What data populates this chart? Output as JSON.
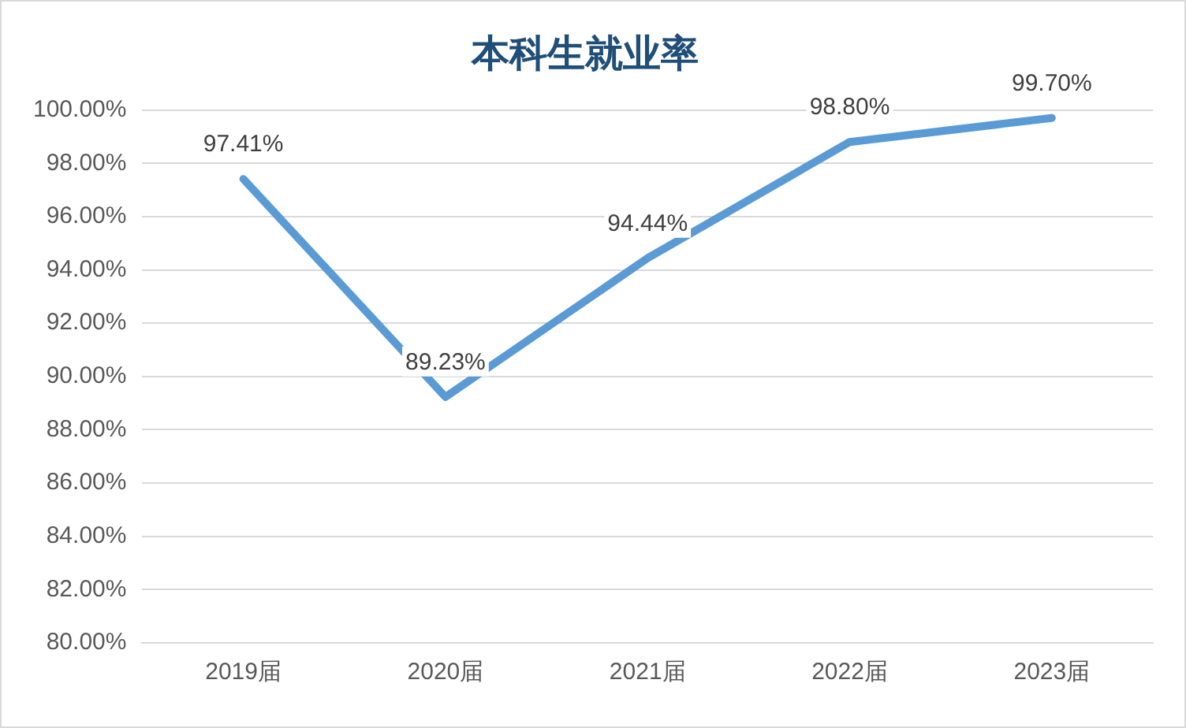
{
  "chart_data": {
    "type": "line",
    "title": "本科生就业率",
    "categories": [
      "2019届",
      "2020届",
      "2021届",
      "2022届",
      "2023届"
    ],
    "series": [
      {
        "color": "#5b9bd5",
        "values": [
          97.41,
          89.23,
          94.44,
          98.8,
          99.7
        ],
        "value_labels": [
          "97.41%",
          "89.23%",
          "94.44%",
          "98.80%",
          "99.70%"
        ]
      }
    ],
    "ylim": [
      80,
      100
    ],
    "yticks": [
      {
        "value": 80,
        "label": "80.00%"
      },
      {
        "value": 82,
        "label": "82.00%"
      },
      {
        "value": 84,
        "label": "84.00%"
      },
      {
        "value": 86,
        "label": "86.00%"
      },
      {
        "value": 88,
        "label": "88.00%"
      },
      {
        "value": 90,
        "label": "90.00%"
      },
      {
        "value": 92,
        "label": "92.00%"
      },
      {
        "value": 94,
        "label": "94.00%"
      },
      {
        "value": 96,
        "label": "96.00%"
      },
      {
        "value": 98,
        "label": "98.00%"
      },
      {
        "value": 100,
        "label": "100.00%"
      }
    ],
    "grid": "y",
    "marker": "none",
    "line_style": "solid",
    "legend": false
  }
}
